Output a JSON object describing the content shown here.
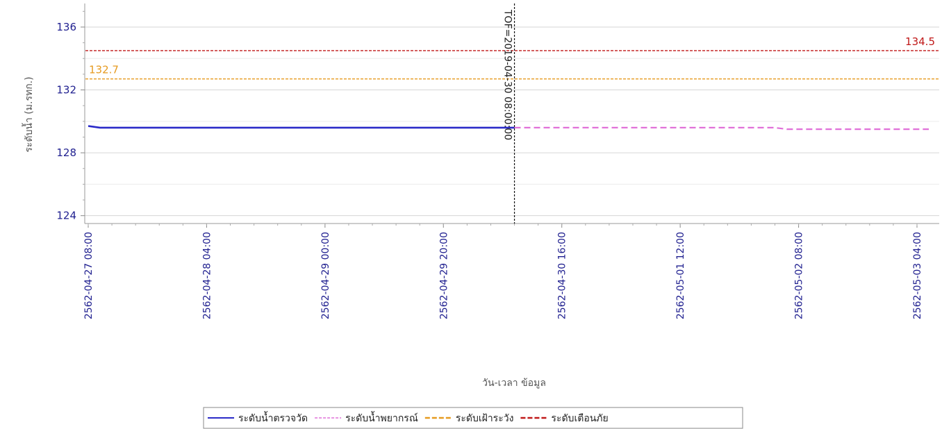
{
  "chart_data": {
    "type": "line",
    "title": "",
    "xlabel": "วัน-เวลา ข้อมูล",
    "ylabel": "ระดับน้ำ (ม.รทก.)",
    "ylim": [
      123.5,
      137.5
    ],
    "y_ticks": [
      124,
      128,
      132,
      136
    ],
    "x_ticks": [
      "2562-04-27 08:00",
      "2562-04-28 04:00",
      "2562-04-29 00:00",
      "2562-04-29 20:00",
      "2562-04-30 16:00",
      "2562-05-01 12:00",
      "2562-05-02 08:00",
      "2562-05-03 04:00"
    ],
    "grid": true,
    "legend_position": "bottom",
    "series": [
      {
        "name": "ระดับน้ำตรวจวัด",
        "color": "#2a2ac8",
        "style": "solid",
        "points": [
          [
            "2562-04-27 08:00",
            129.7
          ],
          [
            "2562-04-27 10:00",
            129.6
          ],
          [
            "2562-04-28 04:00",
            129.6
          ],
          [
            "2562-04-29 00:00",
            129.6
          ],
          [
            "2562-04-29 20:00",
            129.6
          ],
          [
            "2562-04-30 08:00",
            129.6
          ]
        ]
      },
      {
        "name": "ระดับน้ำพยากรณ์",
        "color": "#e070d8",
        "style": "dashed",
        "points": [
          [
            "2562-04-30 08:00",
            129.6
          ],
          [
            "2562-05-01 12:00",
            129.6
          ],
          [
            "2562-05-02 04:00",
            129.6
          ],
          [
            "2562-05-02 06:00",
            129.5
          ],
          [
            "2562-05-03 04:00",
            129.5
          ],
          [
            "2562-05-03 06:00",
            129.5
          ]
        ]
      },
      {
        "name": "ระดับเฝ้าระวัง",
        "color": "#e69a1f",
        "style": "dashed",
        "constant": 132.7,
        "label": "132.7"
      },
      {
        "name": "ระดับเตือนภัย",
        "color": "#c01818",
        "style": "dashed",
        "constant": 134.5,
        "label": "134.5"
      }
    ],
    "annotations": [
      {
        "type": "vline",
        "x": "2562-04-30 08:00",
        "label": "TOF=2019-04-30 08:00:00",
        "color": "#111111"
      }
    ]
  }
}
